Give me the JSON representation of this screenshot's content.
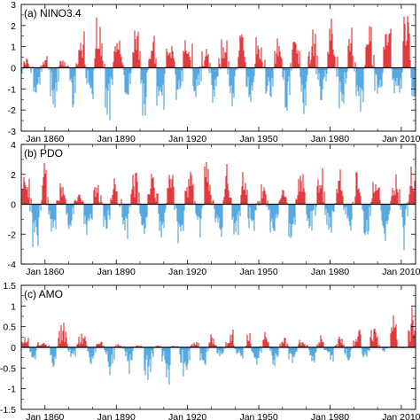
{
  "chart_data": [
    {
      "type": "bar",
      "title": "(a) NINO3.4",
      "x_range": [
        "Jan 1850",
        "Dec 2015"
      ],
      "ylim": [
        -3,
        3
      ],
      "yticks": [
        -3,
        -2,
        -1,
        0,
        1,
        2,
        3
      ],
      "x_tick_labels": [
        "Jan 1860",
        "Jan 1890",
        "Jan 1920",
        "Jan 1950",
        "Jan 1980",
        "Jan 2010"
      ],
      "zero_line": true,
      "grid": false,
      "colors": {
        "positive": "#e03a3e",
        "negative": "#55a8e0"
      },
      "monthly_anomaly_envelope": {
        "note": "approximate decadal envelope of monthly anomalies",
        "x_year": [
          1850,
          1860,
          1870,
          1880,
          1890,
          1900,
          1910,
          1920,
          1930,
          1940,
          1950,
          1960,
          1970,
          1980,
          1990,
          2000,
          2010
        ],
        "positive_peak": [
          0.5,
          0.6,
          0.3,
          2.6,
          1.6,
          2.1,
          1.7,
          1.8,
          1.5,
          2.0,
          1.4,
          1.6,
          2.0,
          2.5,
          2.0,
          2.4,
          2.6
        ],
        "negative_peak": [
          -2.5,
          -2.2,
          -1.8,
          -2.3,
          -2.6,
          -2.4,
          -2.5,
          -2.3,
          -1.9,
          -2.2,
          -2.0,
          -2.1,
          -2.3,
          -2.0,
          -2.4,
          -2.0,
          -1.9
        ]
      }
    },
    {
      "type": "bar",
      "title": "(b) PDO",
      "x_range": [
        "Jan 1850",
        "Dec 2015"
      ],
      "ylim": [
        -4,
        4
      ],
      "yticks": [
        -4,
        -2,
        0,
        2,
        4
      ],
      "x_tick_labels": [
        "Jan 1860",
        "Jan 1890",
        "Jan 1920",
        "Jan 1950",
        "Jan 1980",
        "Jan 2010"
      ],
      "zero_line": true,
      "grid": false,
      "colors": {
        "positive": "#e03a3e",
        "negative": "#55a8e0"
      },
      "monthly_anomaly_envelope": {
        "note": "approximate decadal envelope of monthly anomalies",
        "x_year": [
          1850,
          1860,
          1870,
          1880,
          1890,
          1900,
          1910,
          1920,
          1930,
          1940,
          1950,
          1960,
          1970,
          1980,
          1990,
          2000,
          2010
        ],
        "positive_peak": [
          2.3,
          3.3,
          0.8,
          1.5,
          1.8,
          2.4,
          2.8,
          2.5,
          3.2,
          2.9,
          1.6,
          1.2,
          2.2,
          2.7,
          2.5,
          1.8,
          2.6
        ],
        "negative_peak": [
          -3.6,
          -2.8,
          -2.6,
          -2.5,
          -2.7,
          -2.6,
          -2.4,
          -2.8,
          -2.2,
          -2.3,
          -3.0,
          -2.8,
          -2.6,
          -2.2,
          -2.6,
          -2.8,
          -3.3
        ]
      }
    },
    {
      "type": "bar",
      "title": "(c) AMO",
      "x_range": [
        "Jan 1850",
        "Dec 2015"
      ],
      "ylim": [
        -1.5,
        1.5
      ],
      "yticks": [
        -1.5,
        -1,
        -0.5,
        0,
        0.5,
        1,
        1.5
      ],
      "x_tick_labels": [
        "Jan 1860",
        "Jan 1890",
        "Jan 1920",
        "Jan 1950",
        "Jan 1980",
        "Jan 2010"
      ],
      "zero_line": true,
      "grid": false,
      "colors": {
        "positive": "#e03a3e",
        "negative": "#55a8e0"
      },
      "monthly_anomaly_envelope": {
        "note": "approximate decadal envelope of monthly anomalies",
        "x_year": [
          1850,
          1860,
          1870,
          1880,
          1890,
          1900,
          1910,
          1920,
          1930,
          1940,
          1950,
          1960,
          1970,
          1980,
          1990,
          2000,
          2010
        ],
        "positive_peak": [
          0.35,
          0.2,
          0.7,
          0.2,
          0.1,
          0.05,
          0.05,
          0.05,
          0.35,
          0.45,
          0.4,
          0.3,
          0.2,
          0.35,
          0.4,
          0.75,
          1.1
        ],
        "negative_peak": [
          -0.3,
          -0.6,
          -0.3,
          -0.5,
          -0.8,
          -0.9,
          -1.05,
          -0.95,
          -0.4,
          -0.2,
          -0.5,
          -0.5,
          -0.55,
          -0.35,
          -0.4,
          -0.15,
          -0.05
        ]
      }
    }
  ]
}
